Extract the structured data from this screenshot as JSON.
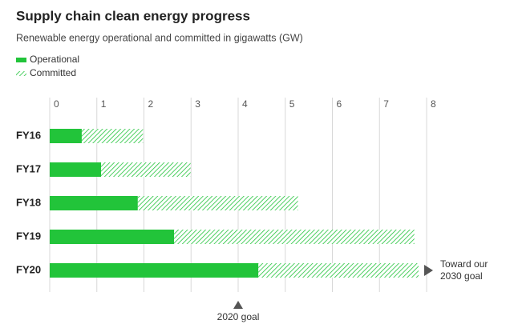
{
  "chart_data": {
    "type": "stacked-barh",
    "title": "Supply chain clean energy progress",
    "subtitle": "Renewable energy operational and committed in gigawatts (GW)",
    "categories": [
      "FY16",
      "FY17",
      "FY18",
      "FY19",
      "FY20"
    ],
    "series": [
      {
        "name": "Operational",
        "color": "#22c43a",
        "style": "solid",
        "values": [
          0.68,
          1.09,
          1.87,
          2.64,
          4.43
        ]
      },
      {
        "name": "Committed",
        "color": "#22c43a",
        "style": "hatched",
        "values": [
          1.3,
          1.9,
          3.4,
          5.1,
          3.4
        ]
      }
    ],
    "xlim": [
      0,
      8
    ],
    "xticks": [
      0,
      1,
      2,
      3,
      4,
      5,
      6,
      7,
      8
    ],
    "grid": true,
    "annotations": [
      {
        "text": "2020 goal",
        "x": 4
      },
      {
        "text": [
          "Toward our",
          "2030 goal"
        ]
      }
    ]
  }
}
